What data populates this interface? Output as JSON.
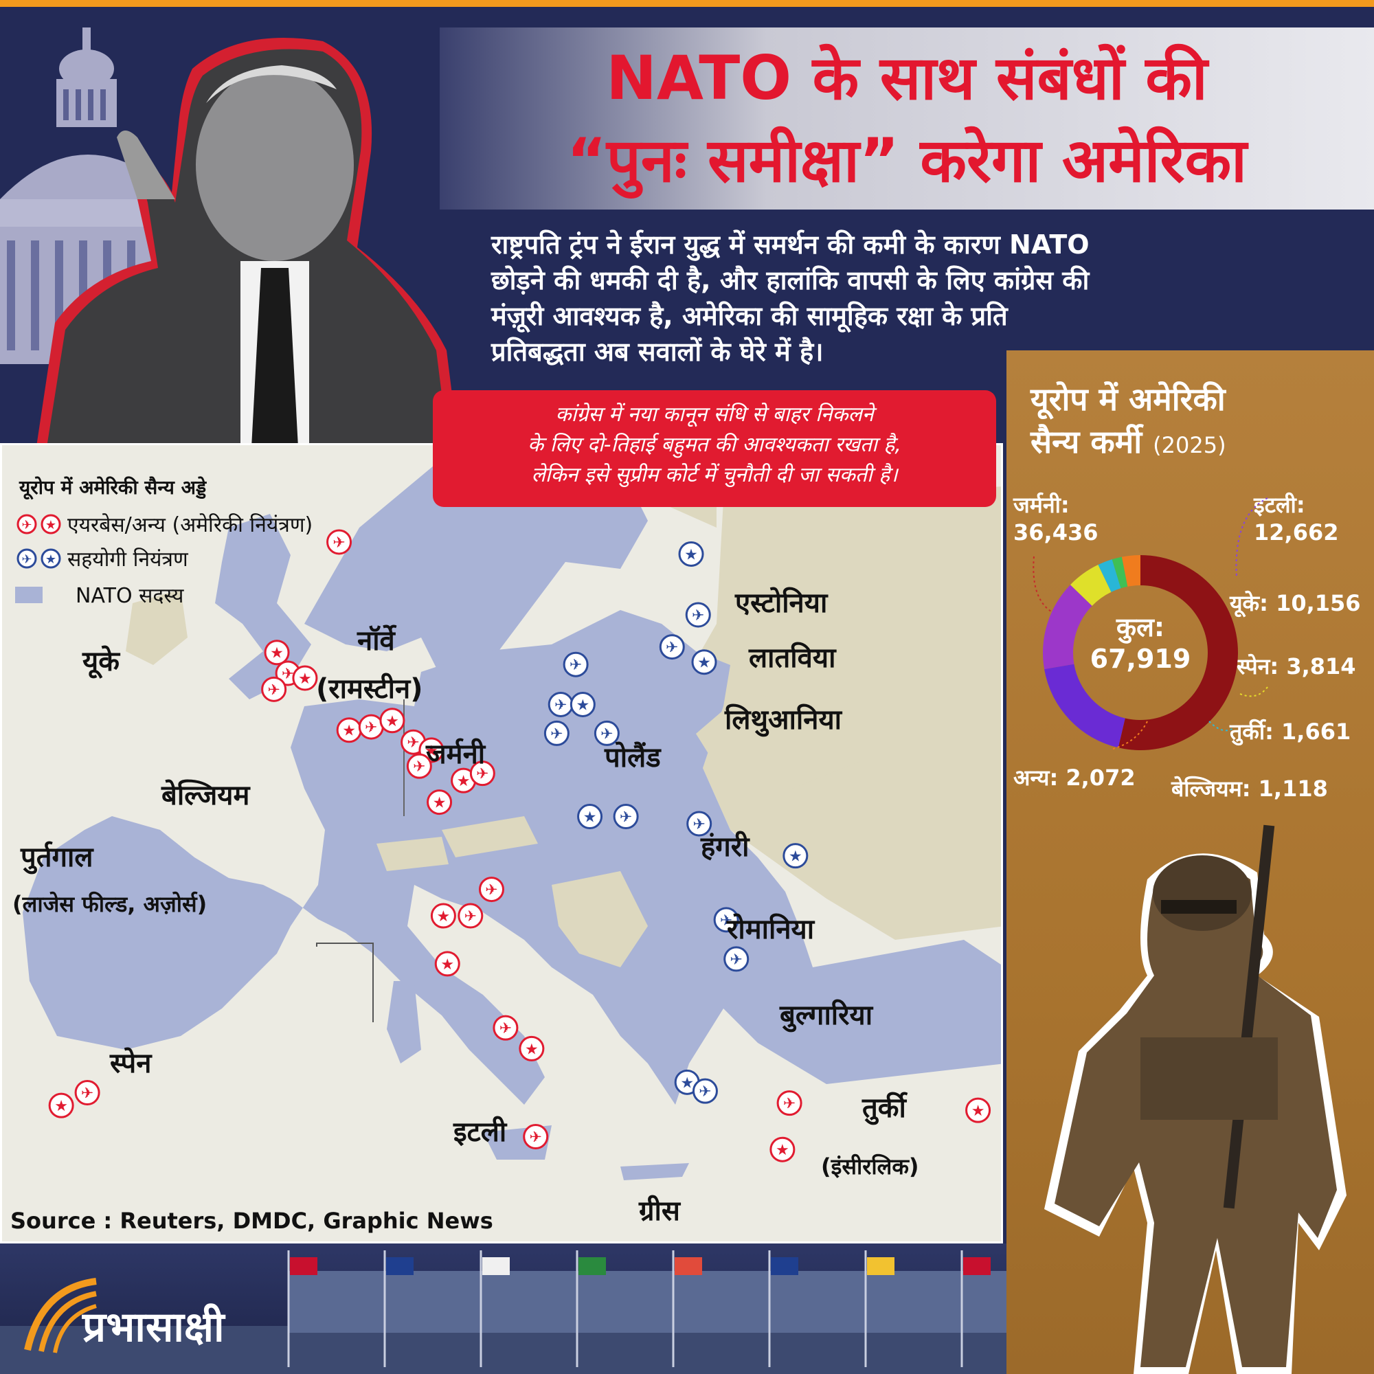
{
  "title": {
    "line1": "NATO के साथ संबंधों की",
    "line2": "“पुनः समीक्षा” करेगा अमेरिका"
  },
  "lead": {
    "line1": "राष्ट्रपति ट्रंप ने ईरान युद्ध में समर्थन की कमी के कारण NATO",
    "line2": "छोड़ने की धमकी दी है, और हालांकि वापसी के लिए कांग्रेस की",
    "line3": "मंज़ूरी आवश्यक है, अमेरिका की सामूहिक रक्षा के प्रति",
    "line4": "प्रतिबद्धता अब सवालों के घेरे में है।"
  },
  "callout": {
    "line1": "कांग्रेस में नया कानून संधि से बाहर निकलने",
    "line2": "के लिए दो-तिहाई बहुमत की आवश्यकता रखता है,",
    "line3": "लेकिन इसे सुप्रीम कोर्ट में चुनौती दी जा सकती है।"
  },
  "legend": {
    "title": "यूरोप में अमेरिकी सैन्य अड्डे",
    "us_control": "एयरबेस/अन्य (अमेरिकी नियंत्रण)",
    "ally_control": "सहयोगी नियंत्रण",
    "nato_member": "NATO सदस्य"
  },
  "colors": {
    "title_red": "#e3172f",
    "navy": "#232a57",
    "nato_fill": "#a9b3d6",
    "non_nato_fill": "#ddd8bf",
    "us_marker": "#e11b30",
    "ally_marker": "#2c4b9a",
    "panel_brown": "#a9742f"
  },
  "map_labels": {
    "uk": "यूके",
    "norway": "नॉर्वे",
    "ramstein": "(रामस्टीन)",
    "germany": "जर्मनी",
    "poland": "पोलैंड",
    "estonia": "एस्टोनिया",
    "latvia": "लातविया",
    "lithuania": "लिथुआनिया",
    "belgium": "बेल्जियम",
    "portugal": "पुर्तगाल",
    "portugal_sub": "(लाजेस फील्ड, अज़ोर्स)",
    "hungary": "हंगरी",
    "romania": "रोमानिया",
    "bulgaria": "बुल्गारिया",
    "spain": "स्पेन",
    "italy": "इटली",
    "turkey": "तुर्की",
    "turkey_sub": "(इंसीरलिक)",
    "greece": "ग्रीस"
  },
  "source": "Source : Reuters, DMDC, Graphic News",
  "logo": "प्रभासाक्षी",
  "personnel": {
    "title_line1": "यूरोप में अमेरिकी",
    "title_line2": "सैन्य कर्मी",
    "year": "(2025)",
    "total_label": "कुल:",
    "total_value": "67,919",
    "germany_label": "जर्मनी:",
    "germany_value": "36,436",
    "italy_label": "इटली:",
    "italy_value": "12,662",
    "uk": "यूके: 10,156",
    "spain": "स्पेन: 3,814",
    "turkey": "तुर्की: 1,661",
    "other": "अन्य: 2,072",
    "belgium": "बेल्जियम: 1,118"
  },
  "chart_data": {
    "type": "pie",
    "title": "यूरोप में अमेरिकी सैन्य कर्मी (2025)",
    "categories": [
      "जर्मनी",
      "इटली",
      "यूके",
      "स्पेन",
      "तुर्की",
      "बेल्जियम",
      "अन्य"
    ],
    "values": [
      36436,
      12662,
      10156,
      3814,
      1661,
      1118,
      2072
    ],
    "total": 67919,
    "colors": [
      "#8e1215",
      "#6a2bd4",
      "#9c37c9",
      "#dfe02a",
      "#29b6d6",
      "#3fbf55",
      "#f07c1e"
    ]
  },
  "markers": {
    "us": [
      [
        0.336,
        0.121
      ],
      [
        0.274,
        0.259
      ],
      [
        0.285,
        0.285
      ],
      [
        0.302,
        0.291
      ],
      [
        0.271,
        0.305
      ],
      [
        0.346,
        0.356
      ],
      [
        0.368,
        0.352
      ],
      [
        0.389,
        0.344
      ],
      [
        0.41,
        0.371
      ],
      [
        0.428,
        0.381
      ],
      [
        0.416,
        0.401
      ],
      [
        0.46,
        0.419
      ],
      [
        0.479,
        0.41
      ],
      [
        0.436,
        0.446
      ],
      [
        0.488,
        0.555
      ],
      [
        0.44,
        0.588
      ],
      [
        0.467,
        0.588
      ],
      [
        0.444,
        0.648
      ],
      [
        0.502,
        0.728
      ],
      [
        0.528,
        0.754
      ],
      [
        0.085,
        0.809
      ],
      [
        0.059,
        0.825
      ],
      [
        0.532,
        0.864
      ],
      [
        0.778,
        0.88
      ],
      [
        0.785,
        0.822
      ],
      [
        0.973,
        0.831
      ]
    ],
    "ally": [
      [
        0.687,
        0.136
      ],
      [
        0.694,
        0.212
      ],
      [
        0.668,
        0.252
      ],
      [
        0.7,
        0.271
      ],
      [
        0.572,
        0.274
      ],
      [
        0.557,
        0.324
      ],
      [
        0.579,
        0.324
      ],
      [
        0.553,
        0.36
      ],
      [
        0.603,
        0.36
      ],
      [
        0.586,
        0.464
      ],
      [
        0.622,
        0.464
      ],
      [
        0.695,
        0.473
      ],
      [
        0.791,
        0.513
      ],
      [
        0.722,
        0.593
      ],
      [
        0.732,
        0.642
      ],
      [
        0.683,
        0.796
      ],
      [
        0.701,
        0.807
      ]
    ]
  }
}
